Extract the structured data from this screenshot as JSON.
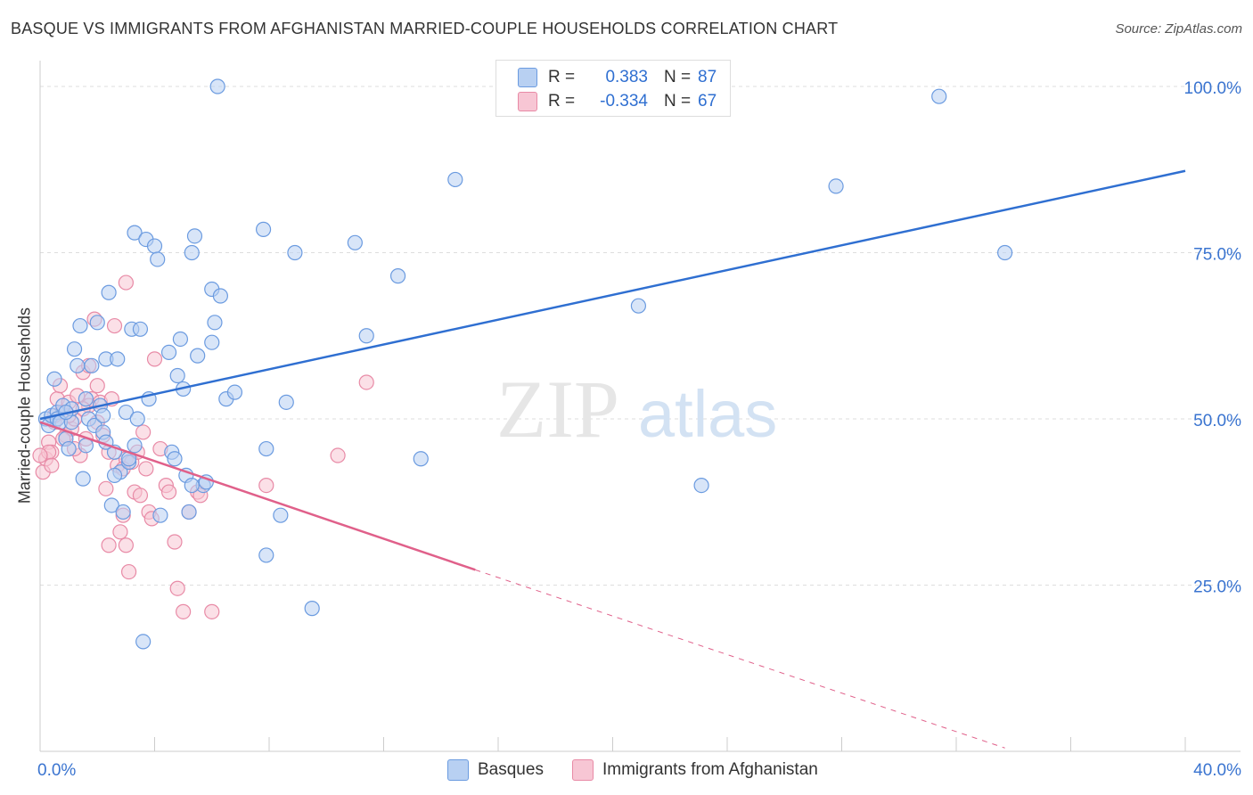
{
  "title": "BASQUE VS IMMIGRANTS FROM AFGHANISTAN MARRIED-COUPLE HOUSEHOLDS CORRELATION CHART",
  "source": "Source: ZipAtlas.com",
  "watermark": {
    "zip": "ZIP",
    "atlas": "atlas"
  },
  "legend": {
    "series1": {
      "r_label": "R =",
      "r_value": "0.383",
      "n_label": "N =",
      "n_value": "87"
    },
    "series2": {
      "r_label": "R =",
      "r_value": "-0.334",
      "n_label": "N =",
      "n_value": "67"
    }
  },
  "bottom_legend": {
    "series1": "Basques",
    "series2": "Immigrants from Afghanistan"
  },
  "colors": {
    "blue_fill": "#b8d0f2",
    "blue_stroke": "#6b9be0",
    "blue_line": "#2f6fd1",
    "pink_fill": "#f7c6d4",
    "pink_stroke": "#e88aa6",
    "pink_line": "#e0608a",
    "axis_text": "#3a74d0",
    "grid": "#dddddd"
  },
  "chart_data": {
    "type": "scatter",
    "title": "BASQUE VS IMMIGRANTS FROM AFGHANISTAN MARRIED-COUPLE HOUSEHOLDS CORRELATION CHART",
    "xlabel": "",
    "ylabel": "Married-couple Households",
    "xlim": [
      0,
      40
    ],
    "ylim": [
      0,
      102
    ],
    "x_tick_labels": [
      "0.0%",
      "40.0%"
    ],
    "y_ticks": [
      25,
      50,
      75,
      100
    ],
    "y_tick_labels": [
      "25.0%",
      "50.0%",
      "75.0%",
      "100.0%"
    ],
    "series": [
      {
        "name": "Basques",
        "R": 0.383,
        "N": 87,
        "trend": {
          "x0": 0,
          "y0": 50,
          "x1": 40,
          "y1": 87.3,
          "dashed_from": null
        },
        "points": [
          [
            0.2,
            50
          ],
          [
            0.3,
            49
          ],
          [
            0.4,
            50.5
          ],
          [
            0.5,
            56
          ],
          [
            0.6,
            51
          ],
          [
            0.8,
            52
          ],
          [
            0.9,
            47
          ],
          [
            1.0,
            45.5
          ],
          [
            1.1,
            51.5
          ],
          [
            1.2,
            60.5
          ],
          [
            1.3,
            58
          ],
          [
            1.4,
            64
          ],
          [
            1.5,
            41
          ],
          [
            1.6,
            46
          ],
          [
            1.7,
            50
          ],
          [
            1.8,
            58
          ],
          [
            1.9,
            49
          ],
          [
            2.0,
            64.5
          ],
          [
            2.1,
            52
          ],
          [
            2.2,
            48
          ],
          [
            2.3,
            59
          ],
          [
            2.4,
            69
          ],
          [
            2.5,
            37
          ],
          [
            2.6,
            45
          ],
          [
            2.7,
            59
          ],
          [
            2.8,
            42
          ],
          [
            2.9,
            36
          ],
          [
            3.0,
            51
          ],
          [
            3.1,
            43.5
          ],
          [
            3.2,
            63.5
          ],
          [
            3.3,
            78
          ],
          [
            3.4,
            50
          ],
          [
            3.5,
            63.5
          ],
          [
            3.6,
            16.5
          ],
          [
            3.7,
            77
          ],
          [
            3.8,
            53
          ],
          [
            4.0,
            76
          ],
          [
            4.1,
            74
          ],
          [
            4.2,
            35.5
          ],
          [
            4.5,
            60
          ],
          [
            4.6,
            45
          ],
          [
            4.7,
            44
          ],
          [
            4.8,
            56.5
          ],
          [
            4.9,
            62
          ],
          [
            5.0,
            54.5
          ],
          [
            5.1,
            41.5
          ],
          [
            5.2,
            36
          ],
          [
            5.3,
            75
          ],
          [
            5.4,
            77.5
          ],
          [
            5.5,
            59.5
          ],
          [
            5.7,
            40
          ],
          [
            5.8,
            40.5
          ],
          [
            6.0,
            69.5
          ],
          [
            6.0,
            61.5
          ],
          [
            6.1,
            64.5
          ],
          [
            6.2,
            100
          ],
          [
            6.3,
            68.5
          ],
          [
            6.5,
            53
          ],
          [
            6.8,
            54
          ],
          [
            7.8,
            78.5
          ],
          [
            7.9,
            45.5
          ],
          [
            7.9,
            29.5
          ],
          [
            8.4,
            35.5
          ],
          [
            8.6,
            52.5
          ],
          [
            8.9,
            75
          ],
          [
            9.5,
            21.5
          ],
          [
            11.0,
            76.5
          ],
          [
            11.4,
            62.5
          ],
          [
            12.5,
            71.5
          ],
          [
            13.3,
            44
          ],
          [
            14.5,
            86
          ],
          [
            20.9,
            67
          ],
          [
            23.1,
            40
          ],
          [
            27.8,
            85
          ],
          [
            31.4,
            98.5
          ],
          [
            33.7,
            75
          ],
          [
            0.6,
            50
          ],
          [
            0.7,
            49.5
          ],
          [
            1.1,
            49.5
          ],
          [
            0.9,
            51
          ],
          [
            1.6,
            53
          ],
          [
            2.2,
            50.5
          ],
          [
            2.6,
            41.5
          ],
          [
            3.1,
            44
          ],
          [
            5.3,
            40
          ],
          [
            3.3,
            46
          ],
          [
            2.3,
            46.5
          ]
        ]
      },
      {
        "name": "Immigrants from Afghanistan",
        "R": -0.334,
        "N": 67,
        "trend": {
          "x0": 0,
          "y0": 49.5,
          "x1": 15.2,
          "y1": 27.3,
          "dashed_to_x": 33.7,
          "dashed_to_y": 0.5
        },
        "points": [
          [
            0.1,
            42
          ],
          [
            0.2,
            44
          ],
          [
            0.3,
            46.5
          ],
          [
            0.4,
            45
          ],
          [
            0.5,
            49.5
          ],
          [
            0.6,
            53
          ],
          [
            0.7,
            55
          ],
          [
            0.8,
            51
          ],
          [
            0.9,
            47.5
          ],
          [
            1.0,
            52.5
          ],
          [
            1.1,
            48.5
          ],
          [
            1.2,
            50
          ],
          [
            1.3,
            53.5
          ],
          [
            1.4,
            44.5
          ],
          [
            1.5,
            57
          ],
          [
            1.6,
            47
          ],
          [
            1.7,
            58
          ],
          [
            1.8,
            53
          ],
          [
            1.9,
            65
          ],
          [
            2.0,
            49.5
          ],
          [
            2.1,
            52.5
          ],
          [
            2.2,
            47.5
          ],
          [
            2.3,
            39.5
          ],
          [
            2.4,
            31
          ],
          [
            2.5,
            53
          ],
          [
            2.6,
            64
          ],
          [
            2.7,
            43
          ],
          [
            2.8,
            33
          ],
          [
            2.9,
            35.5
          ],
          [
            3.0,
            44
          ],
          [
            3.0,
            70.5
          ],
          [
            3.0,
            31
          ],
          [
            3.1,
            27
          ],
          [
            3.2,
            43.5
          ],
          [
            3.3,
            39
          ],
          [
            3.4,
            45
          ],
          [
            3.5,
            38.5
          ],
          [
            3.6,
            48
          ],
          [
            3.7,
            42.5
          ],
          [
            3.8,
            36
          ],
          [
            3.9,
            35
          ],
          [
            4.0,
            59
          ],
          [
            4.2,
            45.5
          ],
          [
            4.4,
            40
          ],
          [
            4.5,
            39
          ],
          [
            4.7,
            31.5
          ],
          [
            4.8,
            24.5
          ],
          [
            5.0,
            21
          ],
          [
            5.2,
            36
          ],
          [
            5.5,
            39
          ],
          [
            5.6,
            38.5
          ],
          [
            6.0,
            21
          ],
          [
            7.9,
            40
          ],
          [
            10.4,
            44.5
          ],
          [
            11.4,
            55.5
          ],
          [
            0.5,
            50.5
          ],
          [
            0.8,
            47
          ],
          [
            1.0,
            50.5
          ],
          [
            1.2,
            45.5
          ],
          [
            1.7,
            52
          ],
          [
            2.0,
            55
          ],
          [
            2.4,
            45
          ],
          [
            2.9,
            42.5
          ],
          [
            0.3,
            45
          ],
          [
            0.4,
            43
          ],
          [
            1.5,
            51.5
          ],
          [
            0.0,
            44.5
          ]
        ]
      }
    ]
  }
}
